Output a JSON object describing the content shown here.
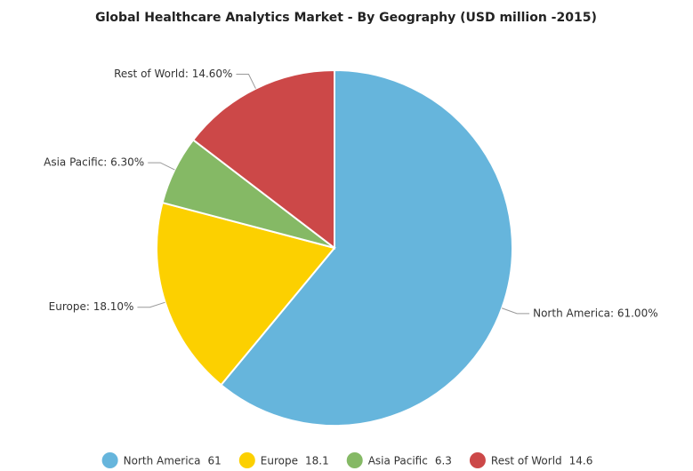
{
  "chart_data": {
    "type": "pie",
    "title": "Global Healthcare Analytics Market - By Geography (USD million -2015)",
    "categories": [
      "North America",
      "Europe",
      "Asia Pacific",
      "Rest of World"
    ],
    "values": [
      61,
      18.1,
      6.3,
      14.6
    ],
    "value_labels": [
      "North America: 61.00%",
      "Europe: 18.10%",
      "Asia Pacific: 6.30%",
      "Rest of World: 14.60%"
    ],
    "colors": [
      "#66b5dc",
      "#fcd000",
      "#85b965",
      "#cc4848"
    ],
    "legend": "bottom"
  }
}
